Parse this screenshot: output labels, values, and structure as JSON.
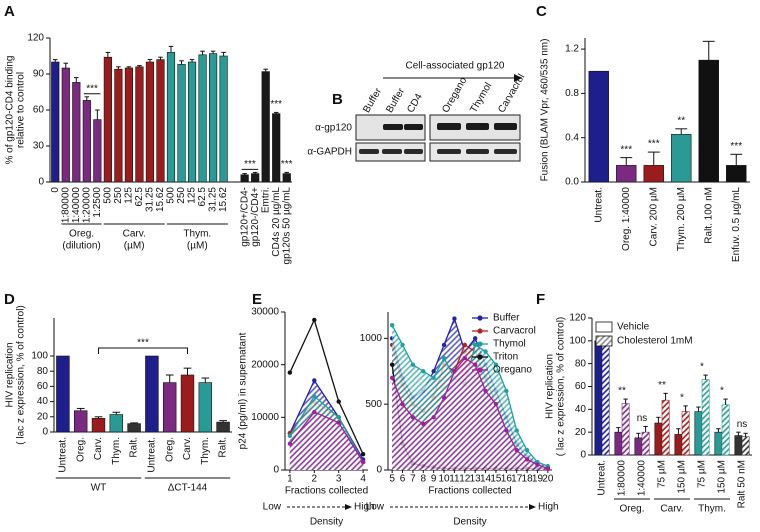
{
  "chart_data": [
    {
      "panel": "A",
      "type": "bar",
      "y_label": [
        "% of gp120-CD4 binding",
        "relative to control"
      ],
      "categories": [
        "0",
        "1:80000",
        "1:40000",
        "1:20000",
        "1:2500",
        "500",
        "250",
        "125",
        "62.5",
        "31.25",
        "15.62",
        "500",
        "250",
        "125",
        "62.5",
        "31.25",
        "15.62",
        null,
        "gp120+/CD4-",
        "gp120-/CD4+",
        "Emtri.",
        "CD4s 20 µg/mL",
        "gp120s 50 µg/mL"
      ],
      "values": [
        100,
        95,
        83,
        68,
        52,
        104,
        94,
        95,
        96,
        100,
        102,
        108,
        98,
        100,
        106,
        107,
        105,
        null,
        6,
        7,
        92,
        57,
        7
      ],
      "errors": [
        2,
        4,
        4,
        3,
        8,
        4,
        2,
        1,
        1,
        2,
        2,
        5,
        3,
        2,
        3,
        2,
        3,
        null,
        1,
        1,
        2,
        1,
        1
      ],
      "colors": [
        "#1e1e8c",
        "#7b2a82",
        "#7b2a82",
        "#7b2a82",
        "#7b2a82",
        "#9b1c1c",
        "#9b1c1c",
        "#9b1c1c",
        "#9b1c1c",
        "#9b1c1c",
        "#9b1c1c",
        "#2a9a96",
        "#2a9a96",
        "#2a9a96",
        "#2a9a96",
        "#2a9a96",
        "#2a9a96",
        null,
        "#1a1a1a",
        "#1a1a1a",
        "#1a1a1a",
        "#1a1a1a",
        "#1a1a1a"
      ],
      "group_labels": [
        [
          "Oreg.",
          "(dilution)"
        ],
        [
          "Carv.",
          "(µM)"
        ],
        [
          "Thym.",
          "(µM)"
        ]
      ],
      "annotations": [
        "***",
        "***",
        "***",
        "***"
      ],
      "ylim": [
        0,
        120
      ],
      "yticks": [
        0,
        30,
        60,
        90,
        120
      ]
    },
    {
      "panel": "C",
      "type": "bar",
      "y_label": "Fusion (BLAM Vpr, 460/535 nm)",
      "categories": [
        "Untreat.",
        "Oreg. 1:40000",
        "Carv. 200 µM",
        "Thym. 200 µM",
        "Ralt. 100 nM",
        "Enfuv. 0.5 µg/mL"
      ],
      "values": [
        1.0,
        0.15,
        0.15,
        0.43,
        1.1,
        0.15
      ],
      "errors": [
        null,
        0.07,
        0.12,
        0.05,
        0.17,
        0.1
      ],
      "colors": [
        "#1e1e8c",
        "#7b2a82",
        "#9b1c1c",
        "#2a9a96",
        "#111111",
        "#111111"
      ],
      "annotations": [
        "***",
        "***",
        "**",
        "***"
      ],
      "ylim": [
        0,
        1.3
      ],
      "yticks": [
        {
          "value": 0,
          "label": "0.0"
        },
        0.4,
        0.8,
        1.2
      ]
    },
    {
      "panel": "D",
      "type": "bar",
      "y_label": [
        "HIV replication",
        "( lac z expression, % of control)"
      ],
      "categories": [
        "Untreat.",
        "Oreg.",
        "Carv.",
        "Thym.",
        "Ralt.",
        "Untreat.",
        "Oreg.",
        "Carv.",
        "Thym.",
        "Ralt."
      ],
      "values": [
        100,
        28,
        18,
        23,
        11,
        100,
        65,
        75,
        65,
        13
      ],
      "errors": [
        null,
        3,
        2,
        3,
        1,
        null,
        10,
        9,
        6,
        2
      ],
      "colors": [
        "#1e1e8c",
        "#7b2a82",
        "#9b1c1c",
        "#2a9a96",
        "#333333",
        "#1e1e8c",
        "#7b2a82",
        "#9b1c1c",
        "#2a9a96",
        "#333333"
      ],
      "group_labels": [
        "WT",
        "ΔCT-144"
      ],
      "annotations": [
        "***"
      ],
      "ylim": [
        0,
        150
      ],
      "yticks": [
        0,
        20,
        40,
        60,
        80,
        100
      ]
    },
    {
      "panel": "E",
      "type": "line",
      "y_label": "p24 (pg/ml) in supernatant",
      "x_label": "Fractions collected",
      "density": {
        "low": "Low",
        "high": "High",
        "axis": "Density"
      },
      "x": [
        1,
        2,
        3,
        4
      ],
      "xlim": [
        0.8,
        4.2
      ],
      "xticks": [
        1,
        2,
        3,
        4
      ],
      "ylim": [
        0,
        30000
      ],
      "yticks": [
        0,
        10000,
        20000,
        30000
      ],
      "series": [
        {
          "color": "#2222aa",
          "fill": true,
          "values": [
            7000,
            17000,
            10000,
            2000
          ]
        },
        {
          "color": "#b22222",
          "fill": true,
          "values": [
            7000,
            13000,
            10000,
            1500
          ]
        },
        {
          "color": "#20a0a0",
          "fill": true,
          "values": [
            6500,
            14000,
            10000,
            1500
          ]
        },
        {
          "color": "#111111",
          "fill": false,
          "values": [
            18500,
            28500,
            13000,
            3000
          ]
        },
        {
          "color": "#a020a0",
          "fill": true,
          "values": [
            5000,
            11000,
            9000,
            1500
          ]
        }
      ]
    },
    {
      "type": "line",
      "x_label": "Fractions collected",
      "density": {
        "low": "Low",
        "high": "High",
        "axis": "Density"
      },
      "x": [
        5,
        6,
        7,
        8,
        9,
        10,
        11,
        12,
        13,
        14,
        15,
        16,
        17,
        18,
        19,
        20
      ],
      "xlim": [
        4.6,
        20.4
      ],
      "xticks": [
        5,
        6,
        7,
        8,
        9,
        10,
        11,
        12,
        13,
        14,
        15,
        16,
        17,
        18,
        19,
        20
      ],
      "ylim": [
        0,
        1200
      ],
      "yticks": [
        0,
        500,
        1000
      ],
      "legend": "top-right",
      "series": [
        {
          "name": "Buffer",
          "color": "#2222aa",
          "fill": true,
          "values": [
            1000,
            700,
            550,
            600,
            750,
            950,
            1150,
            900,
            1000,
            800,
            600,
            400,
            200,
            100,
            50,
            20
          ]
        },
        {
          "name": "Carvacrol",
          "color": "#b22222",
          "fill": true,
          "values": [
            950,
            650,
            500,
            450,
            550,
            800,
            750,
            950,
            900,
            700,
            500,
            300,
            150,
            80,
            40,
            20
          ]
        },
        {
          "name": "Thymol",
          "color": "#20a0a0",
          "fill": true,
          "values": [
            1100,
            950,
            800,
            750,
            700,
            850,
            700,
            650,
            950,
            900,
            800,
            600,
            300,
            150,
            60,
            30
          ]
        },
        {
          "name": "Triton",
          "color": "#111111",
          "fill": false,
          "values": [
            800,
            200,
            50,
            30,
            20,
            10,
            10,
            10,
            10,
            10,
            10,
            10,
            10,
            10,
            10,
            10
          ]
        },
        {
          "name": "Oregano",
          "color": "#a020a0",
          "fill": true,
          "values": [
            700,
            500,
            400,
            350,
            400,
            550,
            750,
            850,
            800,
            600,
            500,
            300,
            150,
            80,
            40,
            10
          ]
        }
      ]
    },
    {
      "panel": "F",
      "type": "bar",
      "y_label": [
        "HIV replication",
        "( lac z expression, % of control)"
      ],
      "categories": [
        "Untreat.",
        "1:80000",
        "1:40000",
        "75 µM",
        "150 µM",
        "75 µM",
        "150 µM",
        "Ralt 50 nM"
      ],
      "legend": "top-left",
      "series": [
        {
          "name": "Vehicle",
          "hatch": false,
          "colors": [
            "#1e1e8c",
            "#7b2a82",
            "#7b2a82",
            "#9b1c1c",
            "#9b1c1c",
            "#2a9a96",
            "#2a9a96",
            "#333333"
          ],
          "values": [
            100,
            20,
            15,
            28,
            18,
            38,
            20,
            17
          ],
          "errors": [
            null,
            4,
            4,
            5,
            5,
            4,
            3,
            3
          ]
        },
        {
          "name": "Cholesterol 1mM",
          "hatch": true,
          "colors": [
            "#1e1e8c",
            "#7b2a82",
            "#7b2a82",
            "#9b1c1c",
            "#9b1c1c",
            "#2a9a96",
            "#2a9a96",
            "#333333"
          ],
          "values": [
            100,
            45,
            20,
            48,
            38,
            66,
            44,
            16
          ],
          "errors": [
            null,
            4,
            5,
            6,
            5,
            4,
            5,
            3
          ]
        }
      ],
      "group_labels": [
        "Oreg.",
        "Carv.",
        "Thym."
      ],
      "annotations": [
        "**",
        "ns",
        "**",
        "*",
        "*",
        "*",
        "ns"
      ],
      "ylim": [
        0,
        120
      ],
      "yticks": [
        0,
        20,
        40,
        60,
        80,
        100,
        120
      ]
    }
  ],
  "blot": {
    "panel": "B",
    "title": "Cell-associated gp120",
    "lanes": [
      "Buffer",
      "Buffer",
      "CD4",
      "Oregano",
      "Thymol",
      "Carvacrol"
    ],
    "rows": [
      "α-gp120",
      "α-GAPDH"
    ]
  }
}
